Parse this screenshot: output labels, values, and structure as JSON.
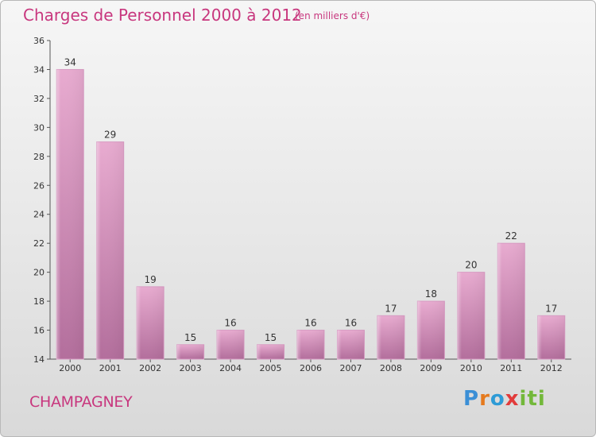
{
  "title": "Charges de Personnel 2000 à 2012",
  "unit_note": "(en milliers d'€)",
  "location": "CHAMPAGNEY",
  "logo_text": "Proxiti",
  "colors": {
    "title": "#c8377e",
    "bar_top": "#e6a6cc",
    "bar_bottom": "#b7709f"
  },
  "chart_data": {
    "type": "bar",
    "categories": [
      "2000",
      "2001",
      "2002",
      "2003",
      "2004",
      "2005",
      "2006",
      "2007",
      "2008",
      "2009",
      "2010",
      "2011",
      "2012"
    ],
    "values": [
      34,
      29,
      19,
      15,
      16,
      15,
      16,
      16,
      17,
      18,
      20,
      22,
      17
    ],
    "ylim": [
      14,
      36
    ],
    "yticks": [
      14,
      16,
      18,
      20,
      22,
      24,
      26,
      28,
      30,
      32,
      34,
      36
    ],
    "grid": false,
    "data_labels": true
  }
}
